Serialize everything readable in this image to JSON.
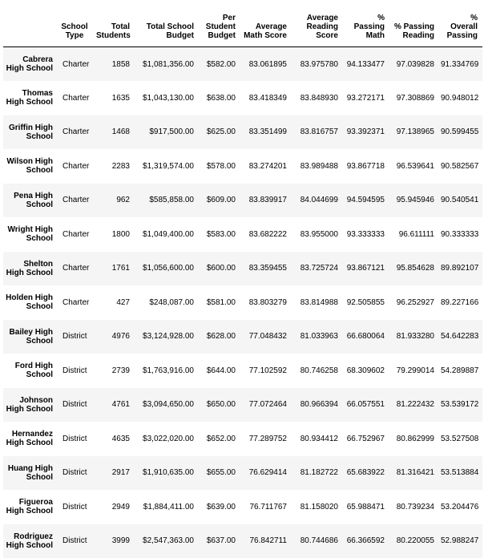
{
  "columns": {
    "school_type": "School Type",
    "total_students": "Total Students",
    "total_budget": "Total School Budget",
    "per_student_budget": "Per Student Budget",
    "avg_math": "Average Math Score",
    "avg_reading": "Average Reading Score",
    "pct_math": "% Passing Math",
    "pct_reading": "% Passing Reading",
    "pct_overall": "% Overall Passing"
  },
  "rows": [
    {
      "school": "Cabrera High School",
      "type": "Charter",
      "students": "1858",
      "budget": "$1,081,356.00",
      "per_student": "$582.00",
      "math": "83.061895",
      "reading": "83.975780",
      "pct_math": "94.133477",
      "pct_reading": "97.039828",
      "pct_overall": "91.334769"
    },
    {
      "school": "Thomas High School",
      "type": "Charter",
      "students": "1635",
      "budget": "$1,043,130.00",
      "per_student": "$638.00",
      "math": "83.418349",
      "reading": "83.848930",
      "pct_math": "93.272171",
      "pct_reading": "97.308869",
      "pct_overall": "90.948012"
    },
    {
      "school": "Griffin High School",
      "type": "Charter",
      "students": "1468",
      "budget": "$917,500.00",
      "per_student": "$625.00",
      "math": "83.351499",
      "reading": "83.816757",
      "pct_math": "93.392371",
      "pct_reading": "97.138965",
      "pct_overall": "90.599455"
    },
    {
      "school": "Wilson High School",
      "type": "Charter",
      "students": "2283",
      "budget": "$1,319,574.00",
      "per_student": "$578.00",
      "math": "83.274201",
      "reading": "83.989488",
      "pct_math": "93.867718",
      "pct_reading": "96.539641",
      "pct_overall": "90.582567"
    },
    {
      "school": "Pena High School",
      "type": "Charter",
      "students": "962",
      "budget": "$585,858.00",
      "per_student": "$609.00",
      "math": "83.839917",
      "reading": "84.044699",
      "pct_math": "94.594595",
      "pct_reading": "95.945946",
      "pct_overall": "90.540541"
    },
    {
      "school": "Wright High School",
      "type": "Charter",
      "students": "1800",
      "budget": "$1,049,400.00",
      "per_student": "$583.00",
      "math": "83.682222",
      "reading": "83.955000",
      "pct_math": "93.333333",
      "pct_reading": "96.611111",
      "pct_overall": "90.333333"
    },
    {
      "school": "Shelton High School",
      "type": "Charter",
      "students": "1761",
      "budget": "$1,056,600.00",
      "per_student": "$600.00",
      "math": "83.359455",
      "reading": "83.725724",
      "pct_math": "93.867121",
      "pct_reading": "95.854628",
      "pct_overall": "89.892107"
    },
    {
      "school": "Holden High School",
      "type": "Charter",
      "students": "427",
      "budget": "$248,087.00",
      "per_student": "$581.00",
      "math": "83.803279",
      "reading": "83.814988",
      "pct_math": "92.505855",
      "pct_reading": "96.252927",
      "pct_overall": "89.227166"
    },
    {
      "school": "Bailey High School",
      "type": "District",
      "students": "4976",
      "budget": "$3,124,928.00",
      "per_student": "$628.00",
      "math": "77.048432",
      "reading": "81.033963",
      "pct_math": "66.680064",
      "pct_reading": "81.933280",
      "pct_overall": "54.642283"
    },
    {
      "school": "Ford High School",
      "type": "District",
      "students": "2739",
      "budget": "$1,763,916.00",
      "per_student": "$644.00",
      "math": "77.102592",
      "reading": "80.746258",
      "pct_math": "68.309602",
      "pct_reading": "79.299014",
      "pct_overall": "54.289887"
    },
    {
      "school": "Johnson High School",
      "type": "District",
      "students": "4761",
      "budget": "$3,094,650.00",
      "per_student": "$650.00",
      "math": "77.072464",
      "reading": "80.966394",
      "pct_math": "66.057551",
      "pct_reading": "81.222432",
      "pct_overall": "53.539172"
    },
    {
      "school": "Hernandez High School",
      "type": "District",
      "students": "4635",
      "budget": "$3,022,020.00",
      "per_student": "$652.00",
      "math": "77.289752",
      "reading": "80.934412",
      "pct_math": "66.752967",
      "pct_reading": "80.862999",
      "pct_overall": "53.527508"
    },
    {
      "school": "Huang High School",
      "type": "District",
      "students": "2917",
      "budget": "$1,910,635.00",
      "per_student": "$655.00",
      "math": "76.629414",
      "reading": "81.182722",
      "pct_math": "65.683922",
      "pct_reading": "81.316421",
      "pct_overall": "53.513884"
    },
    {
      "school": "Figueroa High School",
      "type": "District",
      "students": "2949",
      "budget": "$1,884,411.00",
      "per_student": "$639.00",
      "math": "76.711767",
      "reading": "81.158020",
      "pct_math": "65.988471",
      "pct_reading": "80.739234",
      "pct_overall": "53.204476"
    },
    {
      "school": "Rodriguez High School",
      "type": "District",
      "students": "3999",
      "budget": "$2,547,363.00",
      "per_student": "$637.00",
      "math": "76.842711",
      "reading": "80.744686",
      "pct_math": "66.366592",
      "pct_reading": "80.220055",
      "pct_overall": "52.988247"
    }
  ]
}
